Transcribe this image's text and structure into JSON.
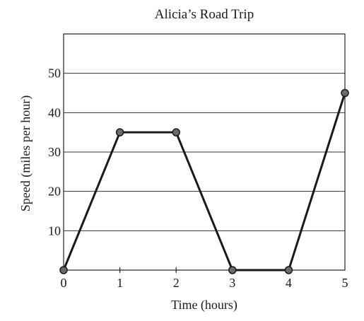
{
  "chart_data": {
    "type": "line",
    "title": "Alicia’s Road Trip",
    "xlabel": "Time (hours)",
    "ylabel": "Speed (miles per hour)",
    "x": [
      0,
      1,
      2,
      3,
      4,
      5
    ],
    "series": [
      {
        "values": [
          0,
          35,
          35,
          0,
          0,
          45
        ]
      }
    ],
    "xlim": [
      0,
      5
    ],
    "ylim": [
      0,
      60
    ],
    "x_ticks": [
      "0",
      "1",
      "2",
      "3",
      "4",
      "5"
    ],
    "y_ticks": [
      "10",
      "20",
      "30",
      "40",
      "50"
    ],
    "y_tick_values": [
      10,
      20,
      30,
      40,
      50
    ],
    "grid": "horizontal",
    "line_color": "#1a1a1a",
    "marker_color": "#6a6a6a"
  }
}
